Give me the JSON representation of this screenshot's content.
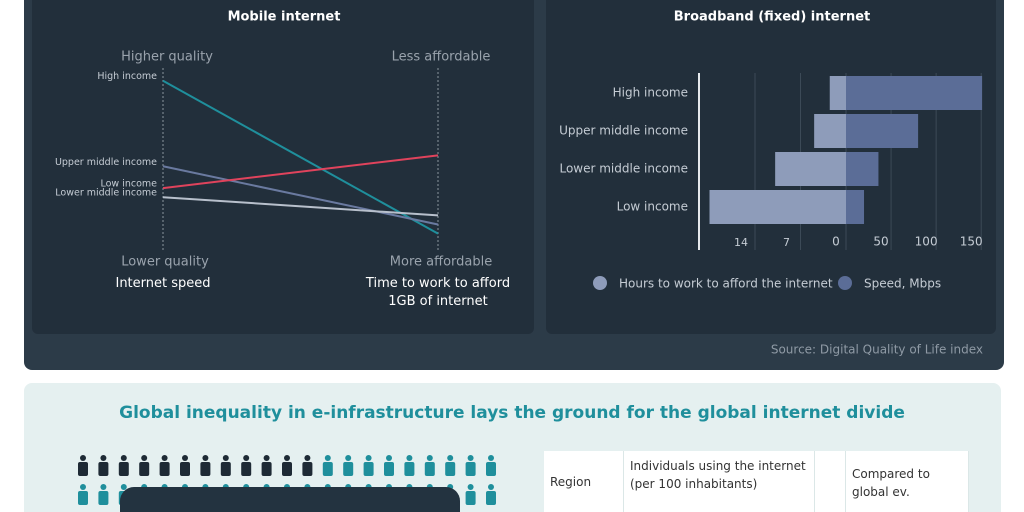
{
  "chart_data": [
    {
      "type": "slope",
      "title": "Mobile internet",
      "categories": [
        "Internet speed",
        "Time to work to afford 1GB of internet"
      ],
      "top_labels": [
        "Higher quality",
        "Less affordable"
      ],
      "bottom_labels": [
        "Lower quality",
        "More affordable"
      ],
      "ylim": [
        0,
        100
      ],
      "series": [
        {
          "name": "High income",
          "color": "#1f8f9c",
          "values": [
            93,
            9
          ]
        },
        {
          "name": "Upper middle income",
          "color": "#6a7aa0",
          "values": [
            46,
            14
          ]
        },
        {
          "name": "Low income",
          "color": "#e0435c",
          "values": [
            34,
            52
          ]
        },
        {
          "name": "Lower middle income",
          "color": "#b8c0cc",
          "values": [
            29,
            19
          ]
        }
      ]
    },
    {
      "type": "diverging-bar",
      "title": "Broadband (fixed) internet",
      "categories": [
        "High income",
        "Upper middle income",
        "Lower middle income",
        "Low income"
      ],
      "series": [
        {
          "name": "Hours to work to afford the internet",
          "color": "#8e9cba",
          "values": [
            2.5,
            4.9,
            10.9,
            21
          ]
        },
        {
          "name": "Speed, Mbps",
          "color": "#5b6d97",
          "values": [
            151,
            80,
            36,
            20
          ],
          "axis": "x2"
        }
      ],
      "xlim": [
        0,
        21
      ],
      "xticks": [
        14,
        7
      ],
      "x2lim": [
        0,
        152
      ],
      "x2ticks": [
        0,
        50,
        100,
        150
      ],
      "grid": true
    }
  ],
  "source": "Source: Digital Quality of Life index",
  "section": {
    "title": "Global inequality in e-infrastructure lays the ground for the global internet divide"
  },
  "table": {
    "header": [
      "Region",
      "Individuals using the internet (per 100 inhabitants)",
      "Compared to global ev."
    ]
  }
}
